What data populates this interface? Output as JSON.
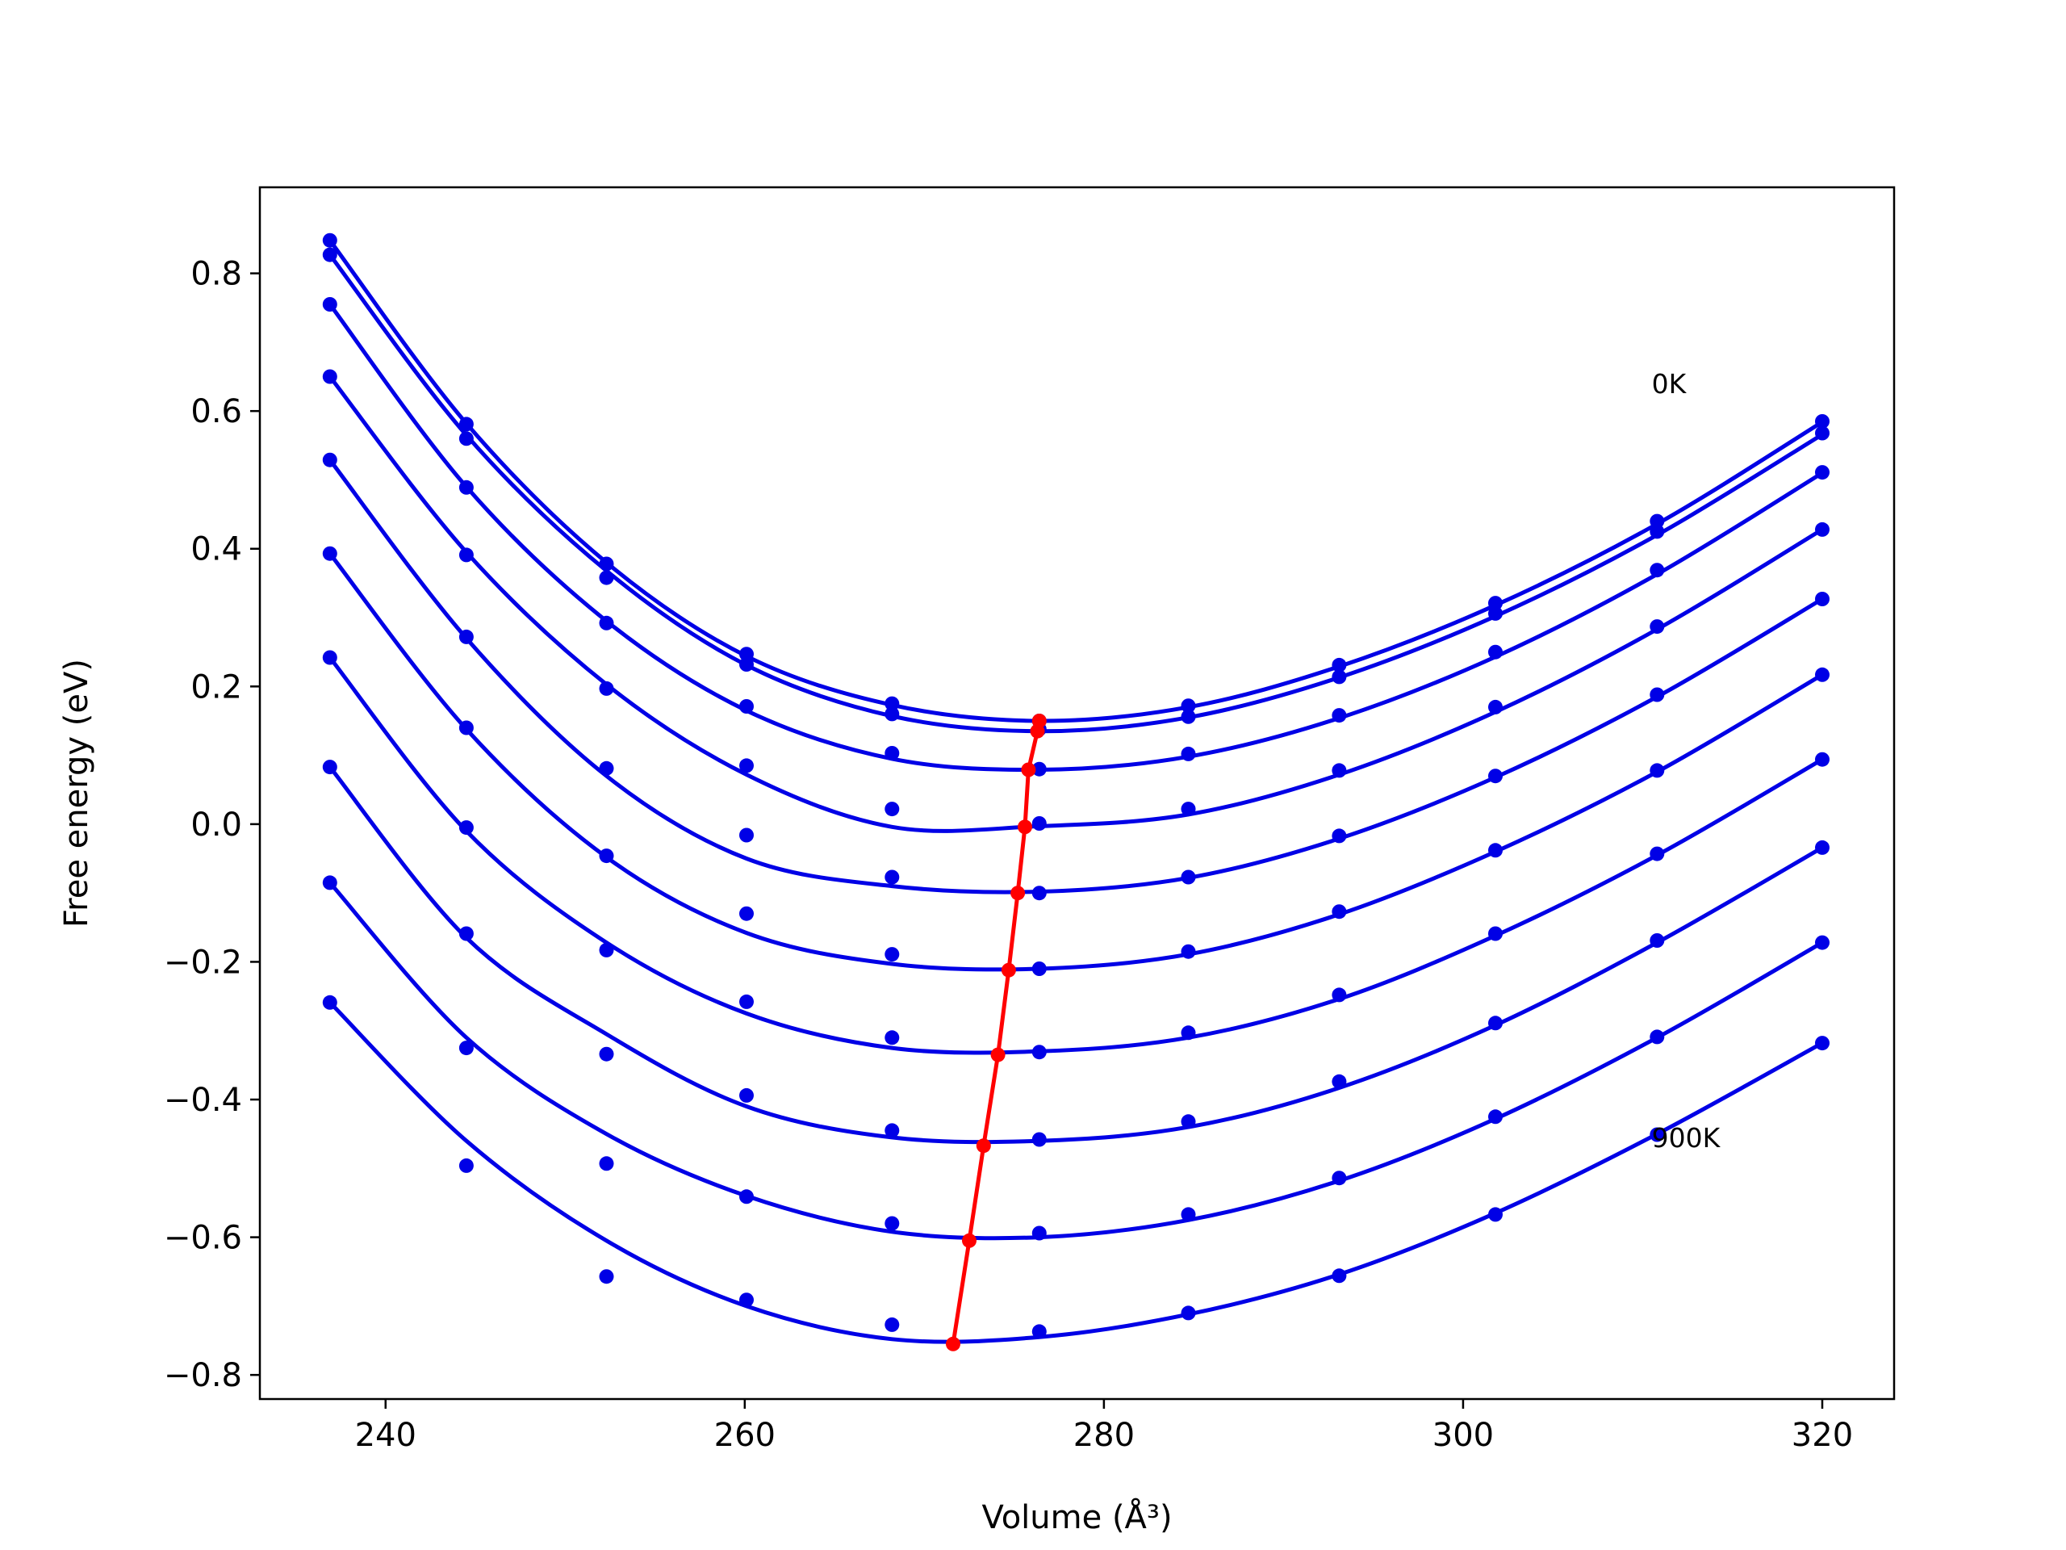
{
  "chart_data": {
    "type": "line",
    "xlabel": "Volume (Å³)",
    "ylabel": "Free energy (eV)",
    "xlim": [
      233,
      324
    ],
    "ylim": [
      -0.835,
      0.925
    ],
    "xticks": [
      240,
      260,
      280,
      300,
      320
    ],
    "xtick_labels": [
      "240",
      "260",
      "280",
      "300",
      "320"
    ],
    "yticks": [
      0.8,
      0.6,
      0.4,
      0.2,
      0.0,
      -0.2,
      -0.4,
      -0.6,
      -0.8
    ],
    "ytick_labels": [
      "0.8",
      "0.6",
      "0.4",
      "0.2",
      "0.0",
      "−0.2",
      "−0.4",
      "−0.6",
      "−0.8"
    ],
    "grid": false,
    "legend": "none",
    "colors": {
      "fit_curve": "#0000e6",
      "data_point": "#0000e6",
      "minimum_line": "#ff0000",
      "frame": "#000000"
    },
    "annotations": [
      {
        "text": "0K",
        "x": 310.5,
        "y": 0.64
      },
      {
        "text": "900K",
        "x": 310.5,
        "y": -0.455
      }
    ],
    "x": [
      236.9,
      244.5,
      252.3,
      260.1,
      268.2,
      276.4,
      284.7,
      293.1,
      301.8,
      310.8,
      320.0
    ],
    "series": [
      {
        "points": [
          0.848,
          0.581,
          0.378,
          0.247,
          0.175,
          0.15,
          0.172,
          0.231,
          0.321,
          0.44,
          0.585
        ],
        "curve": [
          0.848,
          0.582,
          0.38,
          0.244,
          0.173,
          0.15,
          0.17,
          0.229,
          0.318,
          0.436,
          0.584
        ]
      },
      {
        "points": [
          0.827,
          0.56,
          0.358,
          0.232,
          0.16,
          0.138,
          0.156,
          0.214,
          0.306,
          0.425,
          0.568
        ],
        "curve": [
          0.827,
          0.565,
          0.368,
          0.231,
          0.157,
          0.135,
          0.155,
          0.213,
          0.302,
          0.42,
          0.566
        ]
      },
      {
        "points": [
          0.755,
          0.489,
          0.292,
          0.171,
          0.103,
          0.08,
          0.102,
          0.158,
          0.25,
          0.369,
          0.511
        ],
        "curve": [
          0.755,
          0.49,
          0.295,
          0.165,
          0.095,
          0.079,
          0.098,
          0.154,
          0.243,
          0.363,
          0.51
        ]
      },
      {
        "points": [
          0.65,
          0.391,
          0.197,
          0.085,
          0.022,
          0.001,
          0.022,
          0.078,
          0.17,
          0.287,
          0.428
        ],
        "curve": [
          0.65,
          0.395,
          0.203,
          0.072,
          -0.004,
          -0.003,
          0.014,
          0.072,
          0.163,
          0.283,
          0.428
        ]
      },
      {
        "points": [
          0.529,
          0.272,
          0.081,
          -0.016,
          -0.077,
          -0.1,
          -0.077,
          -0.017,
          0.07,
          0.188,
          0.327
        ],
        "curve": [
          0.529,
          0.27,
          0.07,
          -0.05,
          -0.09,
          -0.098,
          -0.078,
          -0.021,
          0.068,
          0.185,
          0.327
        ]
      },
      {
        "points": [
          0.393,
          0.14,
          -0.046,
          -0.13,
          -0.189,
          -0.21,
          -0.185,
          -0.127,
          -0.038,
          0.078,
          0.217
        ],
        "curve": [
          0.393,
          0.138,
          -0.048,
          -0.158,
          -0.203,
          -0.21,
          -0.189,
          -0.131,
          -0.04,
          0.076,
          0.217
        ]
      },
      {
        "points": [
          0.242,
          -0.005,
          -0.183,
          -0.258,
          -0.31,
          -0.331,
          -0.303,
          -0.248,
          -0.159,
          -0.043,
          0.094
        ],
        "curve": [
          0.242,
          -0.01,
          -0.172,
          -0.275,
          -0.325,
          -0.33,
          -0.31,
          -0.254,
          -0.162,
          -0.045,
          0.094
        ]
      },
      {
        "points": [
          0.083,
          -0.159,
          -0.334,
          -0.394,
          -0.445,
          -0.458,
          -0.432,
          -0.374,
          -0.289,
          -0.169,
          -0.034
        ],
        "curve": [
          0.083,
          -0.165,
          -0.305,
          -0.41,
          -0.455,
          -0.46,
          -0.44,
          -0.383,
          -0.292,
          -0.172,
          -0.034
        ]
      },
      {
        "points": [
          -0.085,
          -0.325,
          -0.493,
          -0.541,
          -0.58,
          -0.594,
          -0.567,
          -0.514,
          -0.425,
          -0.309,
          -0.172
        ],
        "curve": [
          -0.085,
          -0.31,
          -0.45,
          -0.54,
          -0.592,
          -0.6,
          -0.575,
          -0.518,
          -0.428,
          -0.31,
          -0.172
        ]
      },
      {
        "points": [
          -0.259,
          -0.496,
          -0.657,
          -0.691,
          -0.727,
          -0.737,
          -0.71,
          -0.656,
          -0.567,
          -0.451,
          -0.318
        ],
        "curve": [
          -0.259,
          -0.46,
          -0.605,
          -0.7,
          -0.748,
          -0.745,
          -0.712,
          -0.654,
          -0.565,
          -0.45,
          -0.318
        ]
      }
    ],
    "minima": {
      "x": [
        276.4,
        276.3,
        275.8,
        275.6,
        275.2,
        274.7,
        274.1,
        273.3,
        272.5,
        271.6
      ],
      "y": [
        0.15,
        0.135,
        0.079,
        -0.004,
        -0.1,
        -0.212,
        -0.335,
        -0.467,
        -0.605,
        -0.755
      ]
    }
  }
}
